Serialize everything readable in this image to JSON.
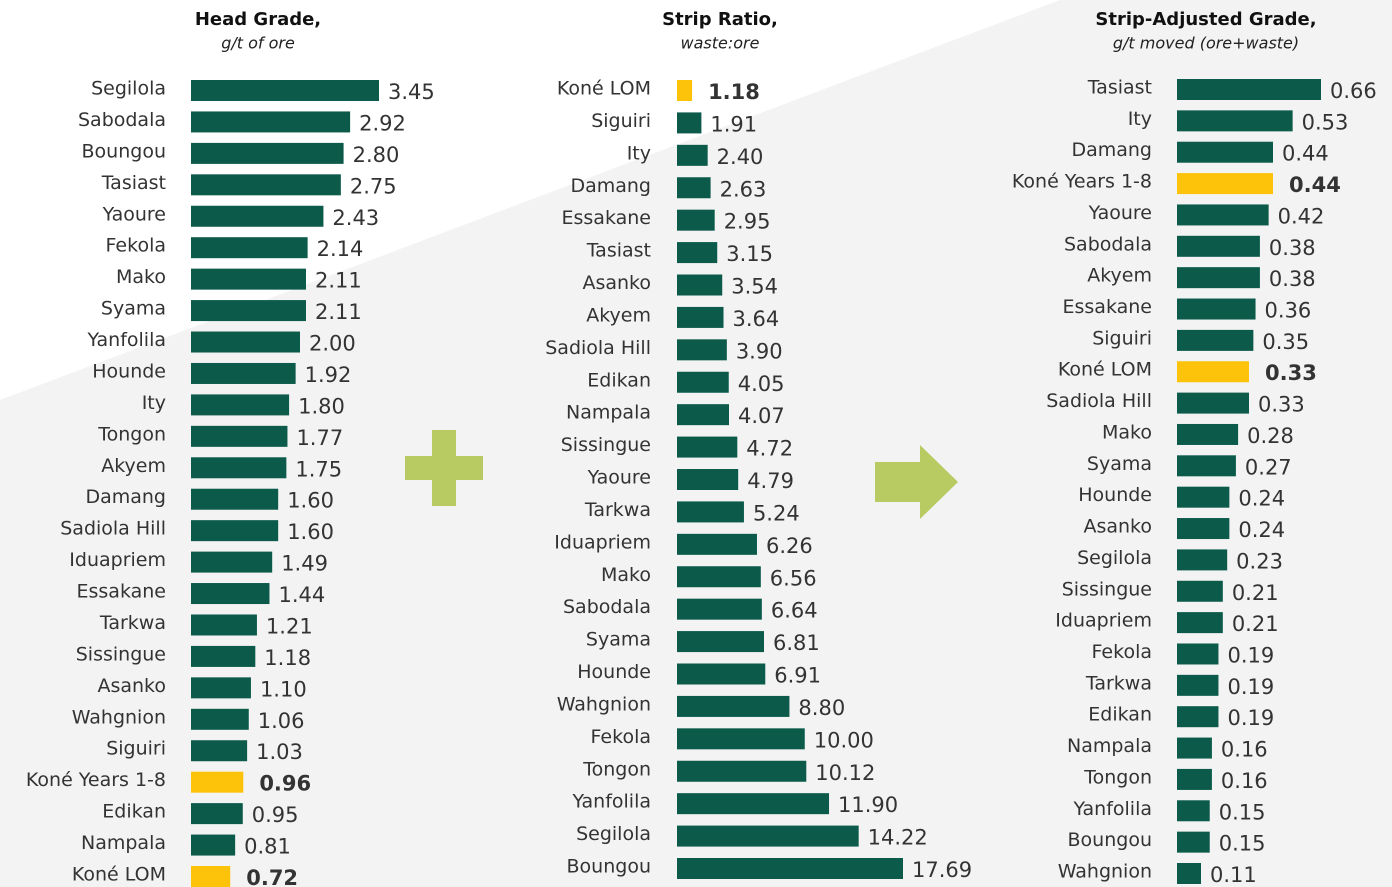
{
  "chart_data": [
    {
      "type": "hbar",
      "title": "Head Grade,",
      "subtitle": "g/t of ore",
      "color": "#0b5a4a",
      "categories": [
        "Segilola",
        "Sabodala",
        "Boungou",
        "Tasiast",
        "Yaoure",
        "Fekola",
        "Mako",
        "Syama",
        "Yanfolila",
        "Hounde",
        "Ity",
        "Tongon",
        "Akyem",
        "Damang",
        "Sadiola Hill",
        "Iduapriem",
        "Essakane",
        "Tarkwa",
        "Sissingue",
        "Asanko",
        "Wahgnion",
        "Siguiri",
        "Koné Years 1-8",
        "Edikan",
        "Nampala",
        "Koné LOM"
      ],
      "values": [
        3.45,
        2.92,
        2.8,
        2.75,
        2.43,
        2.14,
        2.11,
        2.11,
        2.0,
        1.92,
        1.8,
        1.77,
        1.75,
        1.6,
        1.6,
        1.49,
        1.44,
        1.21,
        1.18,
        1.1,
        1.06,
        1.03,
        0.96,
        0.95,
        0.81,
        0.72
      ],
      "value_labels": [
        "3.45",
        "2.92",
        "2.80",
        "2.75",
        "2.43",
        "2.14",
        "2.11",
        "2.11",
        "2.00",
        "1.92",
        "1.80",
        "1.77",
        "1.75",
        "1.60",
        "1.60",
        "1.49",
        "1.44",
        "1.21",
        "1.18",
        "1.10",
        "1.06",
        "1.03",
        "0.96",
        "0.95",
        "0.81",
        "0.72"
      ],
      "colors": [
        "#0b5a4a",
        "#0b5a4a",
        "#0b5a4a",
        "#0b5a4a",
        "#0b5a4a",
        "#0b5a4a",
        "#0b5a4a",
        "#0b5a4a",
        "#0b5a4a",
        "#0b5a4a",
        "#0b5a4a",
        "#0b5a4a",
        "#0b5a4a",
        "#0b5a4a",
        "#0b5a4a",
        "#0b5a4a",
        "#0b5a4a",
        "#0b5a4a",
        "#0b5a4a",
        "#0b5a4a",
        "#0b5a4a",
        "#0b5a4a",
        "#fdc30a",
        "#0b5a4a",
        "#0b5a4a",
        "#fdc30a"
      ]
    },
    {
      "type": "hbar",
      "title": "Strip Ratio,",
      "subtitle": "waste:ore",
      "color": "#0b5a4a",
      "categories": [
        "Koné LOM",
        "Siguiri",
        "Ity",
        "Damang",
        "Essakane",
        "Tasiast",
        "Asanko",
        "Akyem",
        "Sadiola Hill",
        "Edikan",
        "Nampala",
        "Sissingue",
        "Yaoure",
        "Tarkwa",
        "Iduapriem",
        "Mako",
        "Sabodala",
        "Syama",
        "Hounde",
        "Wahgnion",
        "Fekola",
        "Tongon",
        "Yanfolila",
        "Segilola",
        "Boungou"
      ],
      "values": [
        1.18,
        1.91,
        2.4,
        2.63,
        2.95,
        3.15,
        3.54,
        3.64,
        3.9,
        4.05,
        4.07,
        4.72,
        4.79,
        5.24,
        6.26,
        6.56,
        6.64,
        6.81,
        6.91,
        8.8,
        10.0,
        10.12,
        11.9,
        14.22,
        17.69
      ],
      "value_labels": [
        "1.18",
        "1.91",
        "2.40",
        "2.63",
        "2.95",
        "3.15",
        "3.54",
        "3.64",
        "3.90",
        "4.05",
        "4.07",
        "4.72",
        "4.79",
        "5.24",
        "6.26",
        "6.56",
        "6.64",
        "6.81",
        "6.91",
        "8.80",
        "10.00",
        "10.12",
        "11.90",
        "14.22",
        "17.69"
      ],
      "colors": [
        "#fdc30a",
        "#0b5a4a",
        "#0b5a4a",
        "#0b5a4a",
        "#0b5a4a",
        "#0b5a4a",
        "#0b5a4a",
        "#0b5a4a",
        "#0b5a4a",
        "#0b5a4a",
        "#0b5a4a",
        "#0b5a4a",
        "#0b5a4a",
        "#0b5a4a",
        "#0b5a4a",
        "#0b5a4a",
        "#0b5a4a",
        "#0b5a4a",
        "#0b5a4a",
        "#0b5a4a",
        "#0b5a4a",
        "#0b5a4a",
        "#0b5a4a",
        "#0b5a4a",
        "#0b5a4a"
      ]
    },
    {
      "type": "hbar",
      "title": "Strip-Adjusted Grade,",
      "subtitle": "g/t moved (ore+waste)",
      "color": "#0b5a4a",
      "categories": [
        "Tasiast",
        "Ity",
        "Damang",
        "Koné Years 1-8",
        "Yaoure",
        "Sabodala",
        "Akyem",
        "Essakane",
        "Siguiri",
        "Koné LOM",
        "Sadiola Hill",
        "Mako",
        "Syama",
        "Hounde",
        "Asanko",
        "Segilola",
        "Sissingue",
        "Iduapriem",
        "Fekola",
        "Tarkwa",
        "Edikan",
        "Nampala",
        "Tongon",
        "Yanfolila",
        "Boungou",
        "Wahgnion"
      ],
      "values": [
        0.66,
        0.53,
        0.44,
        0.44,
        0.42,
        0.38,
        0.38,
        0.36,
        0.35,
        0.33,
        0.33,
        0.28,
        0.27,
        0.24,
        0.24,
        0.23,
        0.21,
        0.21,
        0.19,
        0.19,
        0.19,
        0.16,
        0.16,
        0.15,
        0.15,
        0.11
      ],
      "value_labels": [
        "0.66",
        "0.53",
        "0.44",
        "0.44",
        "0.42",
        "0.38",
        "0.38",
        "0.36",
        "0.35",
        "0.33",
        "0.33",
        "0.28",
        "0.27",
        "0.24",
        "0.24",
        "0.23",
        "0.21",
        "0.21",
        "0.19",
        "0.19",
        "0.19",
        "0.16",
        "0.16",
        "0.15",
        "0.15",
        "0.11"
      ],
      "colors": [
        "#0b5a4a",
        "#0b5a4a",
        "#0b5a4a",
        "#fdc30a",
        "#0b5a4a",
        "#0b5a4a",
        "#0b5a4a",
        "#0b5a4a",
        "#0b5a4a",
        "#fdc30a",
        "#0b5a4a",
        "#0b5a4a",
        "#0b5a4a",
        "#0b5a4a",
        "#0b5a4a",
        "#0b5a4a",
        "#0b5a4a",
        "#0b5a4a",
        "#0b5a4a",
        "#0b5a4a",
        "#0b5a4a",
        "#0b5a4a",
        "#0b5a4a",
        "#0b5a4a",
        "#0b5a4a",
        "#0b5a4a"
      ]
    }
  ]
}
